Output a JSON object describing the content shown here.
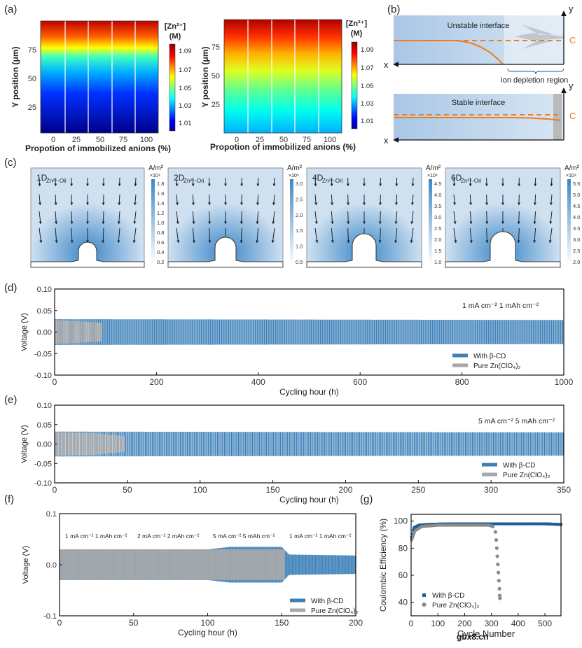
{
  "watermark": "gbx8.cn",
  "panel_a": {
    "label": "(a)",
    "left": {
      "xlabel": "Propotion of immobilized anions (%)",
      "ylabel": "Y position (μm)",
      "x_ticks": [
        "0",
        "25",
        "50",
        "75",
        "100"
      ],
      "y_ticks": [
        "75",
        "50",
        "25"
      ]
    },
    "right": {
      "xlabel": "Propotion of immobilized anions (%)",
      "ylabel": "Y position (μm)",
      "x_ticks": [
        "0",
        "25",
        "50",
        "75",
        "100"
      ],
      "y_ticks": [
        "75",
        "50",
        "25"
      ]
    },
    "colorbar_title_1": "[Zn²⁺]",
    "colorbar_title_2": "(M)",
    "colorbar_ticks": [
      "1.09",
      "1.07",
      "1.05",
      "1.03",
      "1.01"
    ]
  },
  "panel_b": {
    "label": "(b)",
    "unstable_title": "Unstable interface",
    "stable_title": "Stable interface",
    "depletion_label": "Ion depletion region",
    "axis_y": "y",
    "axis_x": "x",
    "c_label": "C"
  },
  "panel_c": {
    "label": "(c)",
    "unit": "A/m²",
    "exponent": "×10⁴",
    "subpanels": [
      {
        "label": "1D",
        "sub": "Zn²⁺-Oli",
        "ticks": [
          "1.8",
          "1.6",
          "1.4",
          "1.2",
          "1.0",
          "0.8",
          "0.6",
          "0.4",
          "0.2"
        ]
      },
      {
        "label": "2D",
        "sub": "Zn²⁺-Ori",
        "ticks": [
          "3.0",
          "2.5",
          "2.0",
          "1.5",
          "1.0",
          "0.5"
        ]
      },
      {
        "label": "4D",
        "sub": "Zn²⁺-Ori",
        "ticks": [
          "4.5",
          "4.0",
          "3.5",
          "3.0",
          "2.5",
          "2.0",
          "1.5",
          "1.0"
        ]
      },
      {
        "label": "6D",
        "sub": "Zn²⁺-Ori",
        "ticks": [
          "5.5",
          "5.0",
          "4.5",
          "4.0",
          "3.5",
          "3.0",
          "2.5",
          "2.0"
        ]
      }
    ]
  },
  "chart_data": [
    {
      "id": "d",
      "label": "(d)",
      "type": "line",
      "xlabel": "Cycling hour (h)",
      "ylabel": "Voltage (V)",
      "xlim": [
        0,
        1000
      ],
      "ylim": [
        -0.1,
        0.1
      ],
      "x_ticks": [
        "0",
        "200",
        "400",
        "600",
        "800",
        "1000"
      ],
      "y_ticks": [
        "0.10",
        "0.05",
        "0.00",
        "-0.05",
        "-0.10"
      ],
      "annotation": "1 mA cm⁻² 1 mAh cm⁻²",
      "series": [
        {
          "name": "With β-CD",
          "color": "#3a7fb8",
          "x_end": 1000,
          "amplitude": [
            [
              0,
              0.03
            ],
            [
              1000,
              0.028
            ]
          ]
        },
        {
          "name": "Pure Zn(ClO₄)₂",
          "color": "#a7a7a7",
          "x_end": 92,
          "amplitude": [
            [
              0,
              0.028
            ],
            [
              60,
              0.024
            ],
            [
              92,
              0.022
            ]
          ]
        }
      ]
    },
    {
      "id": "e",
      "label": "(e)",
      "type": "line",
      "xlabel": "Cycling hour (h)",
      "ylabel": "Voltage (V)",
      "xlim": [
        0,
        350
      ],
      "ylim": [
        -0.1,
        0.1
      ],
      "x_ticks": [
        "0",
        "50",
        "100",
        "150",
        "200",
        "250",
        "300",
        "350"
      ],
      "y_ticks": [
        "0.10",
        "0.05",
        "0.00",
        "-0.05",
        "-0.10"
      ],
      "annotation": "5 mA cm⁻² 5 mAh cm⁻²",
      "series": [
        {
          "name": "With β-CD",
          "color": "#3a7fb8",
          "x_end": 350,
          "amplitude": [
            [
              0,
              0.032
            ],
            [
              350,
              0.03
            ]
          ]
        },
        {
          "name": "Pure Zn(ClO₄)₂",
          "color": "#a7a7a7",
          "x_end": 48,
          "amplitude": [
            [
              0,
              0.03
            ],
            [
              28,
              0.028
            ],
            [
              48,
              0.02
            ]
          ]
        }
      ]
    },
    {
      "id": "f",
      "label": "(f)",
      "type": "line",
      "xlabel": "Cycling hour (h)",
      "ylabel": "Voltage (V)",
      "xlim": [
        0,
        200
      ],
      "ylim": [
        -0.1,
        0.1
      ],
      "x_ticks": [
        "0",
        "50",
        "100",
        "150",
        "200"
      ],
      "y_ticks": [
        "0.1",
        "0.0",
        "-0.1"
      ],
      "annotations": [
        "1 mA cm⁻²  1 mAh cm⁻²",
        "2 mA cm⁻²  2 mAh cm⁻²",
        "5 mA cm⁻²  5 mAh cm⁻²",
        "1 mA cm⁻²  1 mAh cm⁻²"
      ],
      "series": [
        {
          "name": "With β-CD",
          "color": "#3a7fb8",
          "x_end": 200,
          "amplitude": [
            [
              0,
              0.03
            ],
            [
              100,
              0.03
            ],
            [
              115,
              0.035
            ],
            [
              150,
              0.035
            ],
            [
              155,
              0.02
            ],
            [
              200,
              0.018
            ]
          ]
        },
        {
          "name": "Pure Zn(ClO₄)₂",
          "color": "#a7a7a7",
          "x_end": 152,
          "amplitude": [
            [
              0,
              0.03
            ],
            [
              100,
              0.03
            ],
            [
              150,
              0.03
            ]
          ]
        }
      ]
    },
    {
      "id": "g",
      "label": "(g)",
      "type": "scatter",
      "xlabel": "Cycle Number",
      "ylabel": "Coulombic Efficiency (%)",
      "xlim": [
        0,
        560
      ],
      "ylim": [
        30,
        105
      ],
      "x_ticks": [
        "0",
        "100",
        "200",
        "300",
        "400",
        "500"
      ],
      "y_ticks": [
        "100",
        "80",
        "60",
        "40"
      ],
      "series": [
        {
          "name": "With β-CD",
          "color": "#1f5f99",
          "marker": "square",
          "points": [
            [
              2,
              88
            ],
            [
              10,
              95
            ],
            [
              30,
              97
            ],
            [
              60,
              97.5
            ],
            [
              100,
              97.8
            ],
            [
              200,
              98
            ],
            [
              300,
              98
            ],
            [
              400,
              98
            ],
            [
              500,
              98
            ],
            [
              560,
              97.5
            ]
          ]
        },
        {
          "name": "Pure Zn(ClO₄)₂",
          "color": "#8a8a8a",
          "marker": "circle",
          "points": [
            [
              2,
              86
            ],
            [
              15,
              93
            ],
            [
              40,
              96
            ],
            [
              100,
              97
            ],
            [
              200,
              97
            ],
            [
              290,
              97
            ],
            [
              305,
              96
            ],
            [
              315,
              92
            ],
            [
              318,
              86
            ],
            [
              320,
              80
            ],
            [
              322,
              74
            ],
            [
              324,
              68
            ],
            [
              326,
              62
            ],
            [
              328,
              56
            ],
            [
              330,
              50
            ],
            [
              331,
              45
            ],
            [
              332,
              43
            ]
          ]
        }
      ]
    }
  ]
}
